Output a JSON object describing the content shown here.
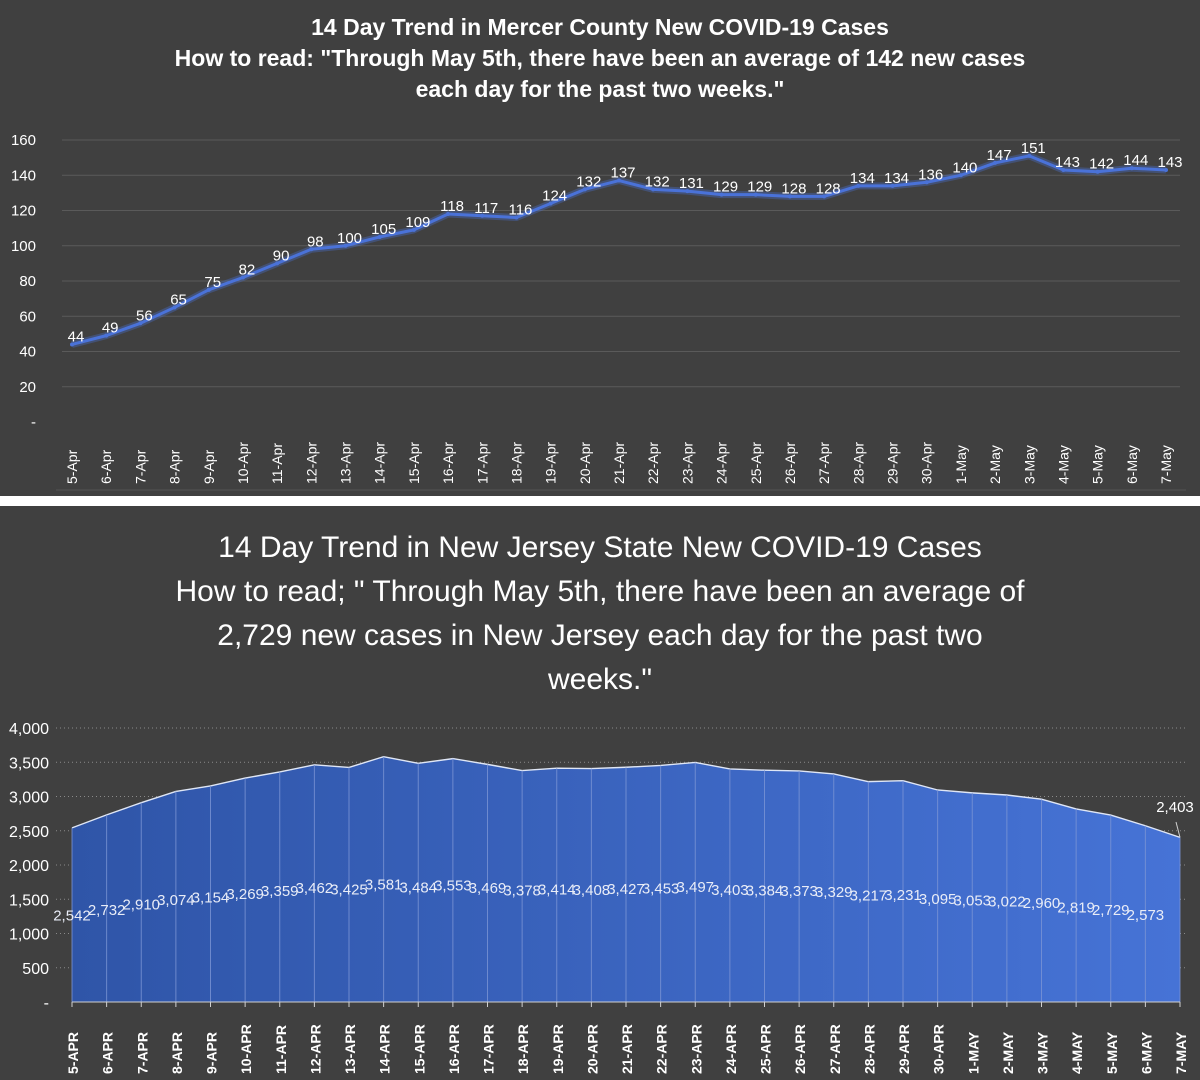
{
  "chart_data": [
    {
      "type": "line",
      "title": "14 Day Trend in Mercer County New COVID-19 Cases",
      "subtitle_lines": [
        "How to read: \"Through May 5th, there have been an average of 142 new cases",
        "each day for the past two weeks.\""
      ],
      "categories": [
        "5-Apr",
        "6-Apr",
        "7-Apr",
        "8-Apr",
        "9-Apr",
        "10-Apr",
        "11-Apr",
        "12-Apr",
        "13-Apr",
        "14-Apr",
        "15-Apr",
        "16-Apr",
        "17-Apr",
        "18-Apr",
        "19-Apr",
        "20-Apr",
        "21-Apr",
        "22-Apr",
        "23-Apr",
        "24-Apr",
        "25-Apr",
        "26-Apr",
        "27-Apr",
        "28-Apr",
        "29-Apr",
        "30-Apr",
        "1-May",
        "2-May",
        "3-May",
        "4-May",
        "5-May",
        "6-May",
        "7-May"
      ],
      "values": [
        44,
        49,
        56,
        65,
        75,
        82,
        90,
        98,
        100,
        105,
        109,
        118,
        117,
        116,
        124,
        132,
        137,
        132,
        131,
        129,
        129,
        128,
        128,
        134,
        134,
        136,
        140,
        147,
        151,
        143,
        142,
        144,
        143
      ],
      "y_ticks": [
        "-",
        "20",
        "40",
        "60",
        "80",
        "100",
        "120",
        "140",
        "160"
      ],
      "ylim": [
        0,
        160
      ],
      "grid": true,
      "line_color": "#4a72d8"
    },
    {
      "type": "area",
      "title_lines": [
        "14 Day Trend in New Jersey State New COVID-19 Cases",
        "How to read; \" Through May 5th, there have been an average of",
        "2,729 new cases in New Jersey each day for the past two",
        "weeks.\""
      ],
      "categories": [
        "5-APR",
        "6-APR",
        "7-APR",
        "8-APR",
        "9-APR",
        "10-APR",
        "11-APR",
        "12-APR",
        "13-APR",
        "14-APR",
        "15-APR",
        "16-APR",
        "17-APR",
        "18-APR",
        "19-APR",
        "20-APR",
        "21-APR",
        "22-APR",
        "23-APR",
        "24-APR",
        "25-APR",
        "26-APR",
        "27-APR",
        "28-APR",
        "29-APR",
        "30-APR",
        "1-MAY",
        "2-MAY",
        "3-MAY",
        "4-MAY",
        "5-MAY",
        "6-MAY",
        "7-MAY"
      ],
      "values": [
        2542,
        2732,
        2910,
        3074,
        3154,
        3269,
        3359,
        3462,
        3425,
        3581,
        3484,
        3553,
        3469,
        3378,
        3414,
        3408,
        3427,
        3453,
        3497,
        3403,
        3384,
        3373,
        3329,
        3217,
        3231,
        3095,
        3053,
        3022,
        2960,
        2819,
        2729,
        2573,
        2403
      ],
      "labels": [
        "2,542",
        "2,732",
        "2,910",
        "3,074",
        "3,154",
        "3,269",
        "3,359",
        "3,462",
        "3,425",
        "3,581",
        "3,484",
        "3,553",
        "3,469",
        "3,378",
        "3,414",
        "3,408",
        "3,427",
        "3,453",
        "3,497",
        "3,403",
        "3,384",
        "3,373",
        "3,329",
        "3,217",
        "3,231",
        "3,095",
        "3,053",
        "3,022",
        "2,960",
        "2,819",
        "2,729",
        "2,573",
        "2,403"
      ],
      "y_ticks": [
        "-",
        "500",
        "1,000",
        "1,500",
        "2,000",
        "2,500",
        "3,000",
        "3,500",
        "4,000"
      ],
      "ylim": [
        0,
        4000
      ],
      "grid": true,
      "fill_color_left": "#2f55a8",
      "fill_color_right": "#4673d6"
    }
  ]
}
